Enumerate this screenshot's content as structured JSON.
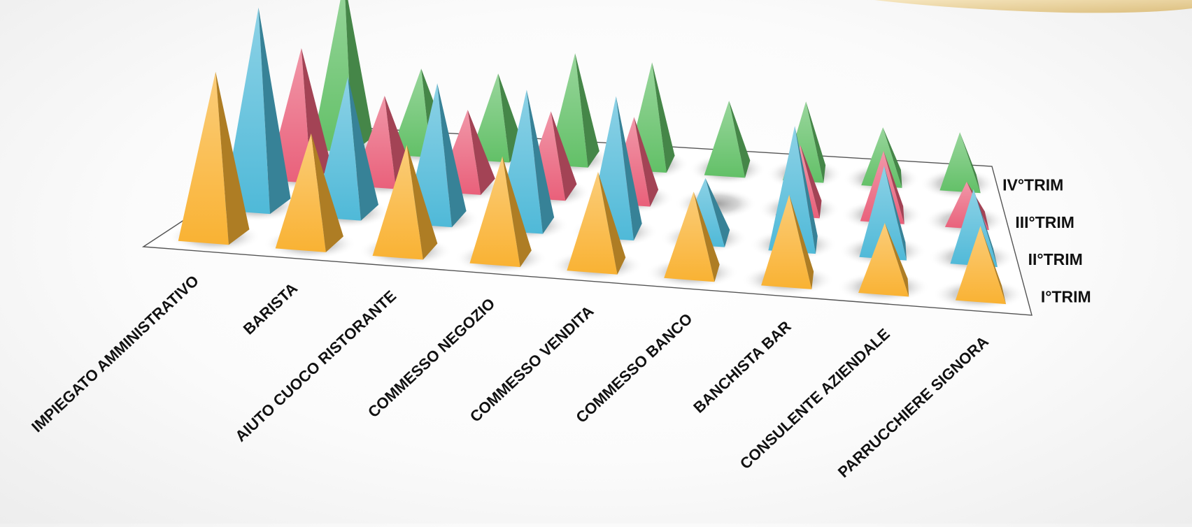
{
  "chart_data": {
    "type": "bar",
    "subtype": "3d-pyramid",
    "categories": [
      "IMPIEGATO AMMINISTRATIVO",
      "BARISTA",
      "AIUTO CUOCO RISTORANTE",
      "COMMESSO NEGOZIO",
      "COMMESSO VENDITA",
      "COMMESSO BANCO",
      "BANCHISTA BAR",
      "CONSULENTE AZIENDALE",
      "PARRUCCHIERE SIGNORA"
    ],
    "series": [
      {
        "name": "I°TRIM",
        "color": "#f9b233",
        "values": [
          195,
          130,
          125,
          120,
          110,
          95,
          100,
          75,
          80
        ]
      },
      {
        "name": "II°TRIM",
        "color": "#4fb9d8",
        "values": [
          235,
          160,
          160,
          160,
          160,
          70,
          140,
          100,
          80
        ]
      },
      {
        "name": "III°TRIM",
        "color": "#e9607a",
        "values": [
          150,
          100,
          90,
          95,
          95,
          0,
          75,
          75,
          45
        ]
      },
      {
        "name": "IV°TRIM",
        "color": "#62c067",
        "values": [
          195,
          95,
          95,
          125,
          120,
          80,
          85,
          60,
          60
        ]
      }
    ],
    "legend": "right",
    "grid": false
  },
  "colors": {
    "floor": "#ffffff",
    "floor_edge": "#555555",
    "background": "#fbfbfb",
    "corner_accent": "#e8cf99"
  }
}
